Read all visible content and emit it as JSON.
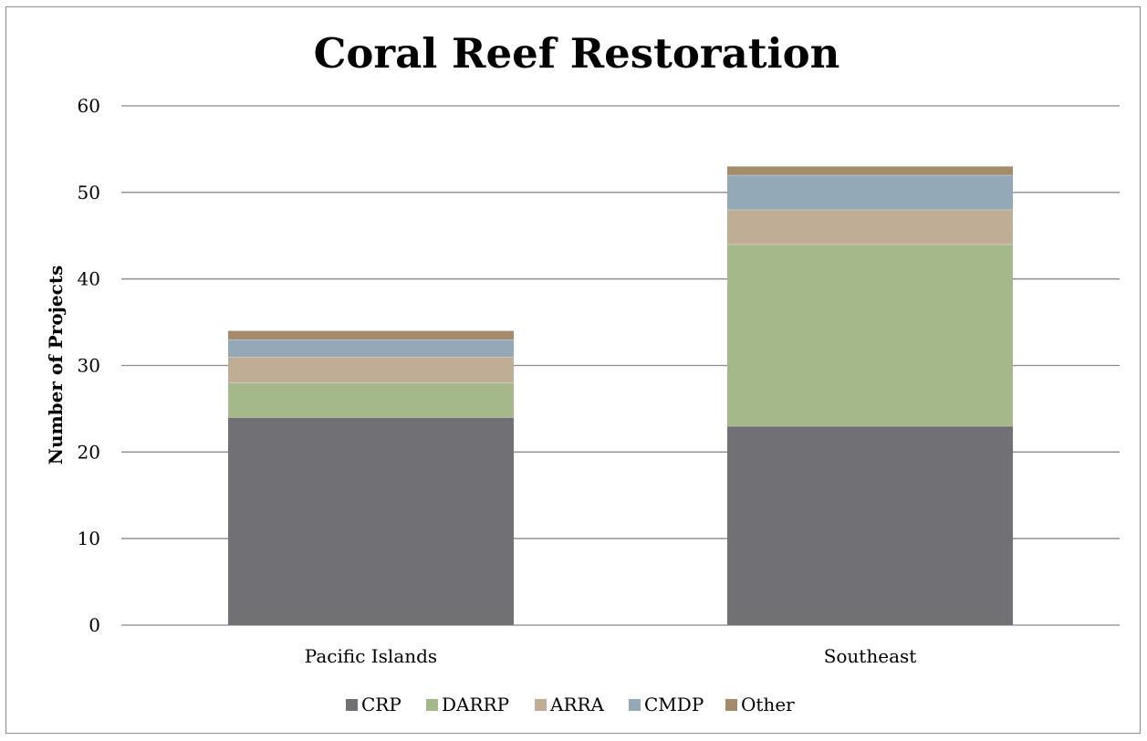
{
  "chart_data": {
    "type": "bar",
    "stacked": true,
    "title": "Coral Reef Restoration",
    "xlabel": "",
    "ylabel": "Number of Projects",
    "ylim": [
      0,
      60
    ],
    "yticks": [
      0,
      10,
      20,
      30,
      40,
      50,
      60
    ],
    "grid": true,
    "legend_position": "bottom",
    "categories": [
      "Pacific Islands",
      "Southeast"
    ],
    "series": [
      {
        "name": "CRP",
        "color": "#717075",
        "values": [
          24,
          23
        ]
      },
      {
        "name": "DARRP",
        "color": "#a5b88a",
        "values": [
          4,
          21
        ]
      },
      {
        "name": "ARRA",
        "color": "#bfad96",
        "values": [
          3,
          4
        ]
      },
      {
        "name": "CMDP",
        "color": "#93a9b8",
        "values": [
          2,
          4
        ]
      },
      {
        "name": "Other",
        "color": "#a58b6c",
        "values": [
          1,
          1
        ]
      }
    ]
  }
}
